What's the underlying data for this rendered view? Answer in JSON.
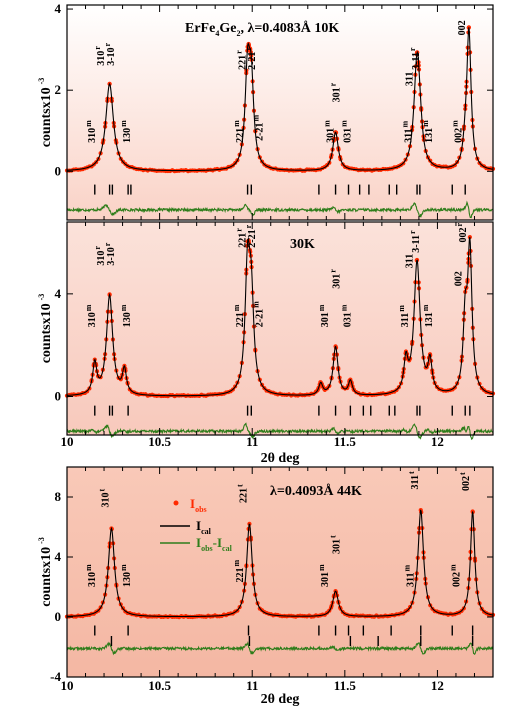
{
  "chart_data": {
    "type": "line",
    "x_ticks": [
      10,
      10.5,
      11,
      11.5,
      12
    ],
    "xlim": [
      10,
      12.3
    ],
    "legend": {
      "obs_main": "I",
      "obs_sub": "obs",
      "cal_main": "I",
      "cal_sub": "cal",
      "diff_main": "I",
      "diff_sub": "obs",
      "diff_mid": "-I",
      "diff_sub2": "cal"
    },
    "panels": [
      {
        "ylim": [
          -1.2,
          4.1
        ],
        "y_ticks": [
          0,
          2,
          4
        ],
        "y_label_main": "countsx10",
        "y_label_sup": "-3",
        "title_parts": [
          "ErFe",
          "4",
          "Ge",
          "2",
          ", λ=0.4083Å 10K"
        ],
        "x_label": "",
        "peaks": [
          {
            "x": 10.23,
            "h": 2.15,
            "w": 0.025
          },
          {
            "x": 10.975,
            "h": 2.3,
            "w": 0.016
          },
          {
            "x": 10.995,
            "h": 1.95,
            "w": 0.016
          },
          {
            "x": 11.45,
            "h": 0.95,
            "w": 0.018
          },
          {
            "x": 11.89,
            "h": 2.7,
            "w": 0.02
          },
          {
            "x": 11.905,
            "h": 0.4,
            "w": 0.016
          },
          {
            "x": 12.17,
            "h": 3.4,
            "w": 0.014
          },
          {
            "x": 12.15,
            "h": 0.4,
            "w": 0.014
          }
        ],
        "labels": [
          {
            "text": "310",
            "x": 10.2,
            "y": 2.6,
            "sup": "r"
          },
          {
            "text": "3-10",
            "x": 10.255,
            "y": 2.6,
            "sup": "r"
          },
          {
            "text": "221",
            "x": 10.965,
            "y": 2.5,
            "sup": "r"
          },
          {
            "text": "2-21",
            "x": 11.015,
            "y": 2.5,
            "sup": "r"
          },
          {
            "text": "301",
            "x": 11.47,
            "y": 1.7,
            "sup": "r"
          },
          {
            "text": "311",
            "x": 11.865,
            "y": 2.1,
            "sup": ""
          },
          {
            "text": "3-11",
            "x": 11.9,
            "y": 2.5,
            "sup": "r"
          },
          {
            "text": "002",
            "x": 12.15,
            "y": 3.35,
            "sup": ""
          },
          {
            "text": "310",
            "x": 10.15,
            "y": 0.7,
            "sup": "m"
          },
          {
            "text": "130",
            "x": 10.34,
            "y": 0.7,
            "sup": "m"
          },
          {
            "text": "221",
            "x": 10.95,
            "y": 0.7,
            "sup": "m"
          },
          {
            "text": "2-21",
            "x": 11.055,
            "y": 0.75,
            "sup": "m"
          },
          {
            "text": "301",
            "x": 11.44,
            "y": 0.7,
            "sup": "m"
          },
          {
            "text": "031",
            "x": 11.53,
            "y": 0.7,
            "sup": "m"
          },
          {
            "text": "311",
            "x": 11.86,
            "y": 0.7,
            "sup": "m"
          },
          {
            "text": "131",
            "x": 11.97,
            "y": 0.7,
            "sup": "m"
          },
          {
            "text": "002",
            "x": 12.13,
            "y": 0.7,
            "sup": "m"
          }
        ],
        "tick_rows": [
          {
            "y": -0.45,
            "xs": [
              10.15,
              10.23,
              10.245,
              10.33,
              10.345,
              10.975,
              10.995,
              11.36,
              11.45,
              11.52,
              11.58,
              11.63,
              11.74,
              11.78,
              11.89,
              11.905,
              12.08,
              12.15
            ]
          }
        ],
        "diff_offset": -0.95
      },
      {
        "ylim": [
          -1.5,
          6.8
        ],
        "y_ticks": [
          0,
          4
        ],
        "y_label_main": "countsx10",
        "y_label_sup": "-3",
        "title_parts": [
          "30K"
        ],
        "x_label": "2θ deg",
        "peaks": [
          {
            "x": 10.15,
            "h": 1.2,
            "w": 0.013
          },
          {
            "x": 10.23,
            "h": 3.9,
            "w": 0.02
          },
          {
            "x": 10.31,
            "h": 0.95,
            "w": 0.013
          },
          {
            "x": 10.975,
            "h": 4.7,
            "w": 0.016
          },
          {
            "x": 10.995,
            "h": 3.4,
            "w": 0.016
          },
          {
            "x": 11.37,
            "h": 0.45,
            "w": 0.013
          },
          {
            "x": 11.45,
            "h": 1.9,
            "w": 0.016
          },
          {
            "x": 11.53,
            "h": 0.55,
            "w": 0.013
          },
          {
            "x": 11.83,
            "h": 1.2,
            "w": 0.013
          },
          {
            "x": 11.89,
            "h": 5.2,
            "w": 0.02
          },
          {
            "x": 11.96,
            "h": 1.2,
            "w": 0.013
          },
          {
            "x": 12.15,
            "h": 2.7,
            "w": 0.013
          },
          {
            "x": 12.175,
            "h": 5.6,
            "w": 0.014
          }
        ],
        "labels": [
          {
            "text": "310",
            "x": 10.2,
            "y": 5.1,
            "sup": "r"
          },
          {
            "text": "3-10",
            "x": 10.255,
            "y": 5.1,
            "sup": "r"
          },
          {
            "text": "221",
            "x": 10.965,
            "y": 5.8,
            "sup": "r"
          },
          {
            "text": "2-21",
            "x": 11.015,
            "y": 5.8,
            "sup": "r"
          },
          {
            "text": "301",
            "x": 11.47,
            "y": 4.2,
            "sup": "r"
          },
          {
            "text": "311",
            "x": 11.865,
            "y": 5.0,
            "sup": ""
          },
          {
            "text": "3-11",
            "x": 11.9,
            "y": 5.6,
            "sup": "r"
          },
          {
            "text": "002",
            "x": 12.13,
            "y": 4.3,
            "sup": ""
          },
          {
            "text": "002",
            "x": 12.155,
            "y": 6.0,
            "sup": "r"
          },
          {
            "text": "310",
            "x": 10.15,
            "y": 2.7,
            "sup": "m"
          },
          {
            "text": "130",
            "x": 10.34,
            "y": 2.7,
            "sup": "m"
          },
          {
            "text": "221",
            "x": 10.95,
            "y": 2.7,
            "sup": "m"
          },
          {
            "text": "2-21",
            "x": 11.055,
            "y": 2.7,
            "sup": "m"
          },
          {
            "text": "301",
            "x": 11.41,
            "y": 2.7,
            "sup": "m"
          },
          {
            "text": "031",
            "x": 11.53,
            "y": 2.7,
            "sup": "m"
          },
          {
            "text": "311",
            "x": 11.84,
            "y": 2.7,
            "sup": "m"
          },
          {
            "text": "131",
            "x": 11.97,
            "y": 2.7,
            "sup": "m"
          }
        ],
        "tick_rows": [
          {
            "y": -0.55,
            "xs": [
              10.15,
              10.23,
              10.245,
              10.33,
              10.975,
              10.995,
              11.36,
              11.45,
              11.53,
              11.6,
              11.64,
              11.74,
              11.77,
              11.89,
              11.905,
              12.08,
              12.15,
              12.175
            ]
          }
        ],
        "diff_offset": -1.35
      },
      {
        "ylim": [
          -4,
          10
        ],
        "y_ticks": [
          -4,
          0,
          4,
          8
        ],
        "y_label_main": "countsx10",
        "y_label_sup": "-3",
        "title_parts": [
          "λ=0.4093Å 44K"
        ],
        "x_label": "2θ deg",
        "peaks": [
          {
            "x": 10.24,
            "h": 5.9,
            "w": 0.02
          },
          {
            "x": 10.985,
            "h": 6.2,
            "w": 0.018
          },
          {
            "x": 11.45,
            "h": 1.7,
            "w": 0.018
          },
          {
            "x": 11.91,
            "h": 7.1,
            "w": 0.018
          },
          {
            "x": 12.19,
            "h": 7.0,
            "w": 0.014
          }
        ],
        "labels": [
          {
            "text": "310",
            "x": 10.225,
            "y": 7.3,
            "sup": "t"
          },
          {
            "text": "221",
            "x": 10.97,
            "y": 7.6,
            "sup": "t"
          },
          {
            "text": "301",
            "x": 11.47,
            "y": 4.2,
            "sup": "t"
          },
          {
            "text": "311",
            "x": 11.895,
            "y": 8.5,
            "sup": "t"
          },
          {
            "text": "002",
            "x": 12.17,
            "y": 8.4,
            "sup": "t"
          },
          {
            "text": "310",
            "x": 10.15,
            "y": 2.0,
            "sup": "m"
          },
          {
            "text": "130",
            "x": 10.34,
            "y": 2.0,
            "sup": "m"
          },
          {
            "text": "221",
            "x": 10.95,
            "y": 2.3,
            "sup": "m"
          },
          {
            "text": "301",
            "x": 11.41,
            "y": 2.0,
            "sup": "m"
          },
          {
            "text": "311",
            "x": 11.87,
            "y": 2.0,
            "sup": "m"
          },
          {
            "text": "002",
            "x": 12.12,
            "y": 2.0,
            "sup": "m"
          }
        ],
        "tick_rows": [
          {
            "y": -0.9,
            "xs": [
              10.15,
              10.33,
              10.98,
              11.36,
              11.45,
              11.52,
              11.6,
              11.75,
              11.91,
              12.08,
              12.19
            ]
          },
          {
            "y": -1.6,
            "xs": [
              10.24,
              10.985,
              11.53,
              11.68,
              11.91,
              12.19
            ]
          }
        ],
        "diff_offset": -2.1
      }
    ]
  }
}
